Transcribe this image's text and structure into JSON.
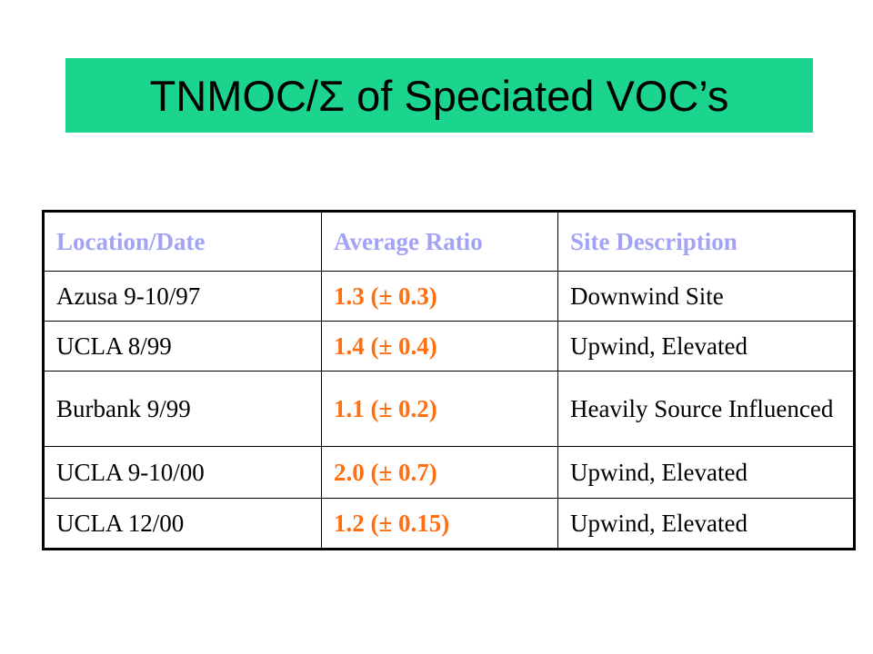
{
  "title": {
    "prefix": "TNMOC/",
    "symbol": "Σ",
    "suffix": " of Speciated VOC’s"
  },
  "colors": {
    "title_background": "#1bd48d",
    "header_text": "#a3a3f5",
    "ratio_text": "#ff6f12"
  },
  "table": {
    "headers": [
      "Location/Date",
      "Average Ratio",
      "Site Description"
    ],
    "rows": [
      {
        "location": "Azusa 9-10/97",
        "ratio": "1.3 (± 0.3)",
        "site": "Downwind Site"
      },
      {
        "location": "UCLA 8/99",
        "ratio": "1.4 (± 0.4)",
        "site": "Upwind, Elevated"
      },
      {
        "location": "Burbank 9/99",
        "ratio": "1.1 (± 0.2)",
        "site": "Heavily Source Influenced"
      },
      {
        "location": "UCLA 9-10/00",
        "ratio": "2.0 (± 0.7)",
        "site": "Upwind, Elevated"
      },
      {
        "location": "UCLA 12/00",
        "ratio": "1.2 (± 0.15)",
        "site": "Upwind, Elevated"
      }
    ]
  }
}
